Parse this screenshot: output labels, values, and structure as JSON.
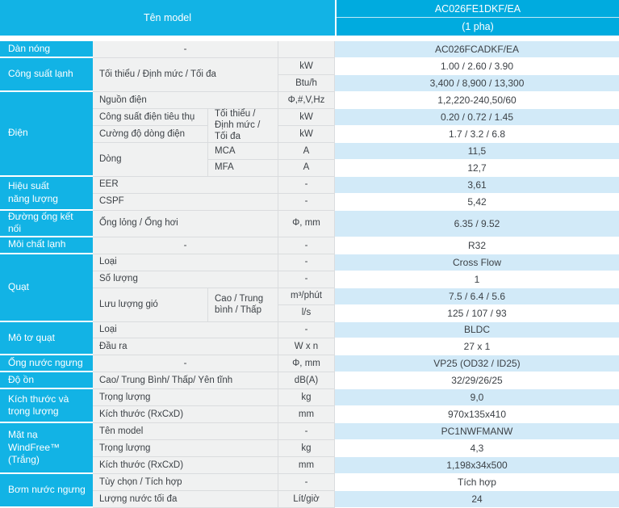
{
  "header": {
    "left_label": "Tên model",
    "model": "AC026FE1DKF/EA",
    "phase": "(1 pha)"
  },
  "colors": {
    "accent_cyan": "#12b3e5",
    "accent_cyan_deep": "#00abdf",
    "row_blue": "#d2eaf8",
    "cell_gray": "#f0f1f1",
    "border_gray": "#dadcde",
    "text": "#3c4146"
  },
  "sections": [
    {
      "title": "Dàn nóng",
      "rows": [
        {
          "label": "-",
          "unit": "",
          "value": "AC026FCADKF/EA"
        }
      ]
    },
    {
      "title": "Công suất lạnh",
      "rows": [
        {
          "label": "Tối thiểu / Định mức / Tối đa",
          "unit": "kW",
          "value": "1.00 / 2.60 / 3.90"
        },
        {
          "unit": "Btu/h",
          "value": "3,400 / 8,900 / 13,300"
        }
      ]
    },
    {
      "title": "Điện",
      "rows": [
        {
          "label": "Nguồn điện",
          "unit": "Φ,#,V,Hz",
          "value": "1,2,220-240,50/60"
        },
        {
          "label": "Công suất điện tiêu thụ",
          "sub": "Tối thiểu / Định mức / Tối đa",
          "unit": "kW",
          "value": "0.20 / 0.72 / 1.45"
        },
        {
          "label": "Cường độ dòng điện",
          "unit": "kW",
          "value": "1.7 / 3.2 / 6.8"
        },
        {
          "label": "Dòng",
          "sub": "MCA",
          "unit": "A",
          "value": "11,5"
        },
        {
          "sub": "MFA",
          "unit": "A",
          "value": "12,7"
        }
      ]
    },
    {
      "title": "Hiệu suất\nnăng lượng",
      "rows": [
        {
          "label": "EER",
          "unit": "-",
          "value": "3,61"
        },
        {
          "label": "CSPF",
          "unit": "-",
          "value": "5,42"
        }
      ]
    },
    {
      "title": "Đường ống kết nối",
      "rows": [
        {
          "label": "Ống lỏng / Ống hơi",
          "unit": "Φ, mm",
          "value": "6.35 / 9.52"
        }
      ]
    },
    {
      "title": "Môi chất lạnh",
      "rows": [
        {
          "label": "-",
          "unit": "-",
          "value": "R32"
        }
      ]
    },
    {
      "title": "Quạt",
      "rows": [
        {
          "label": "Loại",
          "unit": "-",
          "value": "Cross Flow"
        },
        {
          "label": "Số lượng",
          "unit": "-",
          "value": "1"
        },
        {
          "label": "Lưu lượng gió",
          "sub": "Cao / Trung bình / Thấp",
          "unit": "m³/phút",
          "value": "7.5 / 6.4 / 5.6"
        },
        {
          "unit": "l/s",
          "value": "125 / 107 / 93"
        }
      ]
    },
    {
      "title": "Mô tơ quạt",
      "rows": [
        {
          "label": "Loại",
          "unit": "-",
          "value": "BLDC"
        },
        {
          "label": "Đầu ra",
          "unit": "W x n",
          "value": "27 x 1"
        }
      ]
    },
    {
      "title": "Ống nước ngưng",
      "rows": [
        {
          "label": "-",
          "unit": "Φ, mm",
          "value": "VP25 (OD32 / ID25)"
        }
      ]
    },
    {
      "title": "Độ ồn",
      "rows": [
        {
          "label": "Cao/ Trung Bình/ Thấp/ Yên tĩnh",
          "unit": "dB(A)",
          "value": "32/29/26/25"
        }
      ]
    },
    {
      "title": "Kích thước và\ntrọng lượng",
      "rows": [
        {
          "label": "Trọng lượng",
          "unit": "kg",
          "value": "9,0"
        },
        {
          "label": "Kích thước (RxCxD)",
          "unit": "mm",
          "value": "970x135x410"
        }
      ]
    },
    {
      "title": "Mặt nạ WindFree™\n(Trắng)",
      "rows": [
        {
          "label": "Tên model",
          "unit": "-",
          "value": "PC1NWFMANW"
        },
        {
          "label": "Trọng lượng",
          "unit": "kg",
          "value": "4,3"
        },
        {
          "label": "Kích thước (RxCxD)",
          "unit": "mm",
          "value": "1,198x34x500"
        }
      ]
    },
    {
      "title": "Bơm nước ngưng",
      "rows": [
        {
          "label": "Tùy chọn / Tích hợp",
          "unit": "-",
          "value": "Tích hợp"
        },
        {
          "label": "Lượng nước tối đa",
          "unit": "Lít/giờ",
          "value": "24"
        }
      ]
    }
  ]
}
